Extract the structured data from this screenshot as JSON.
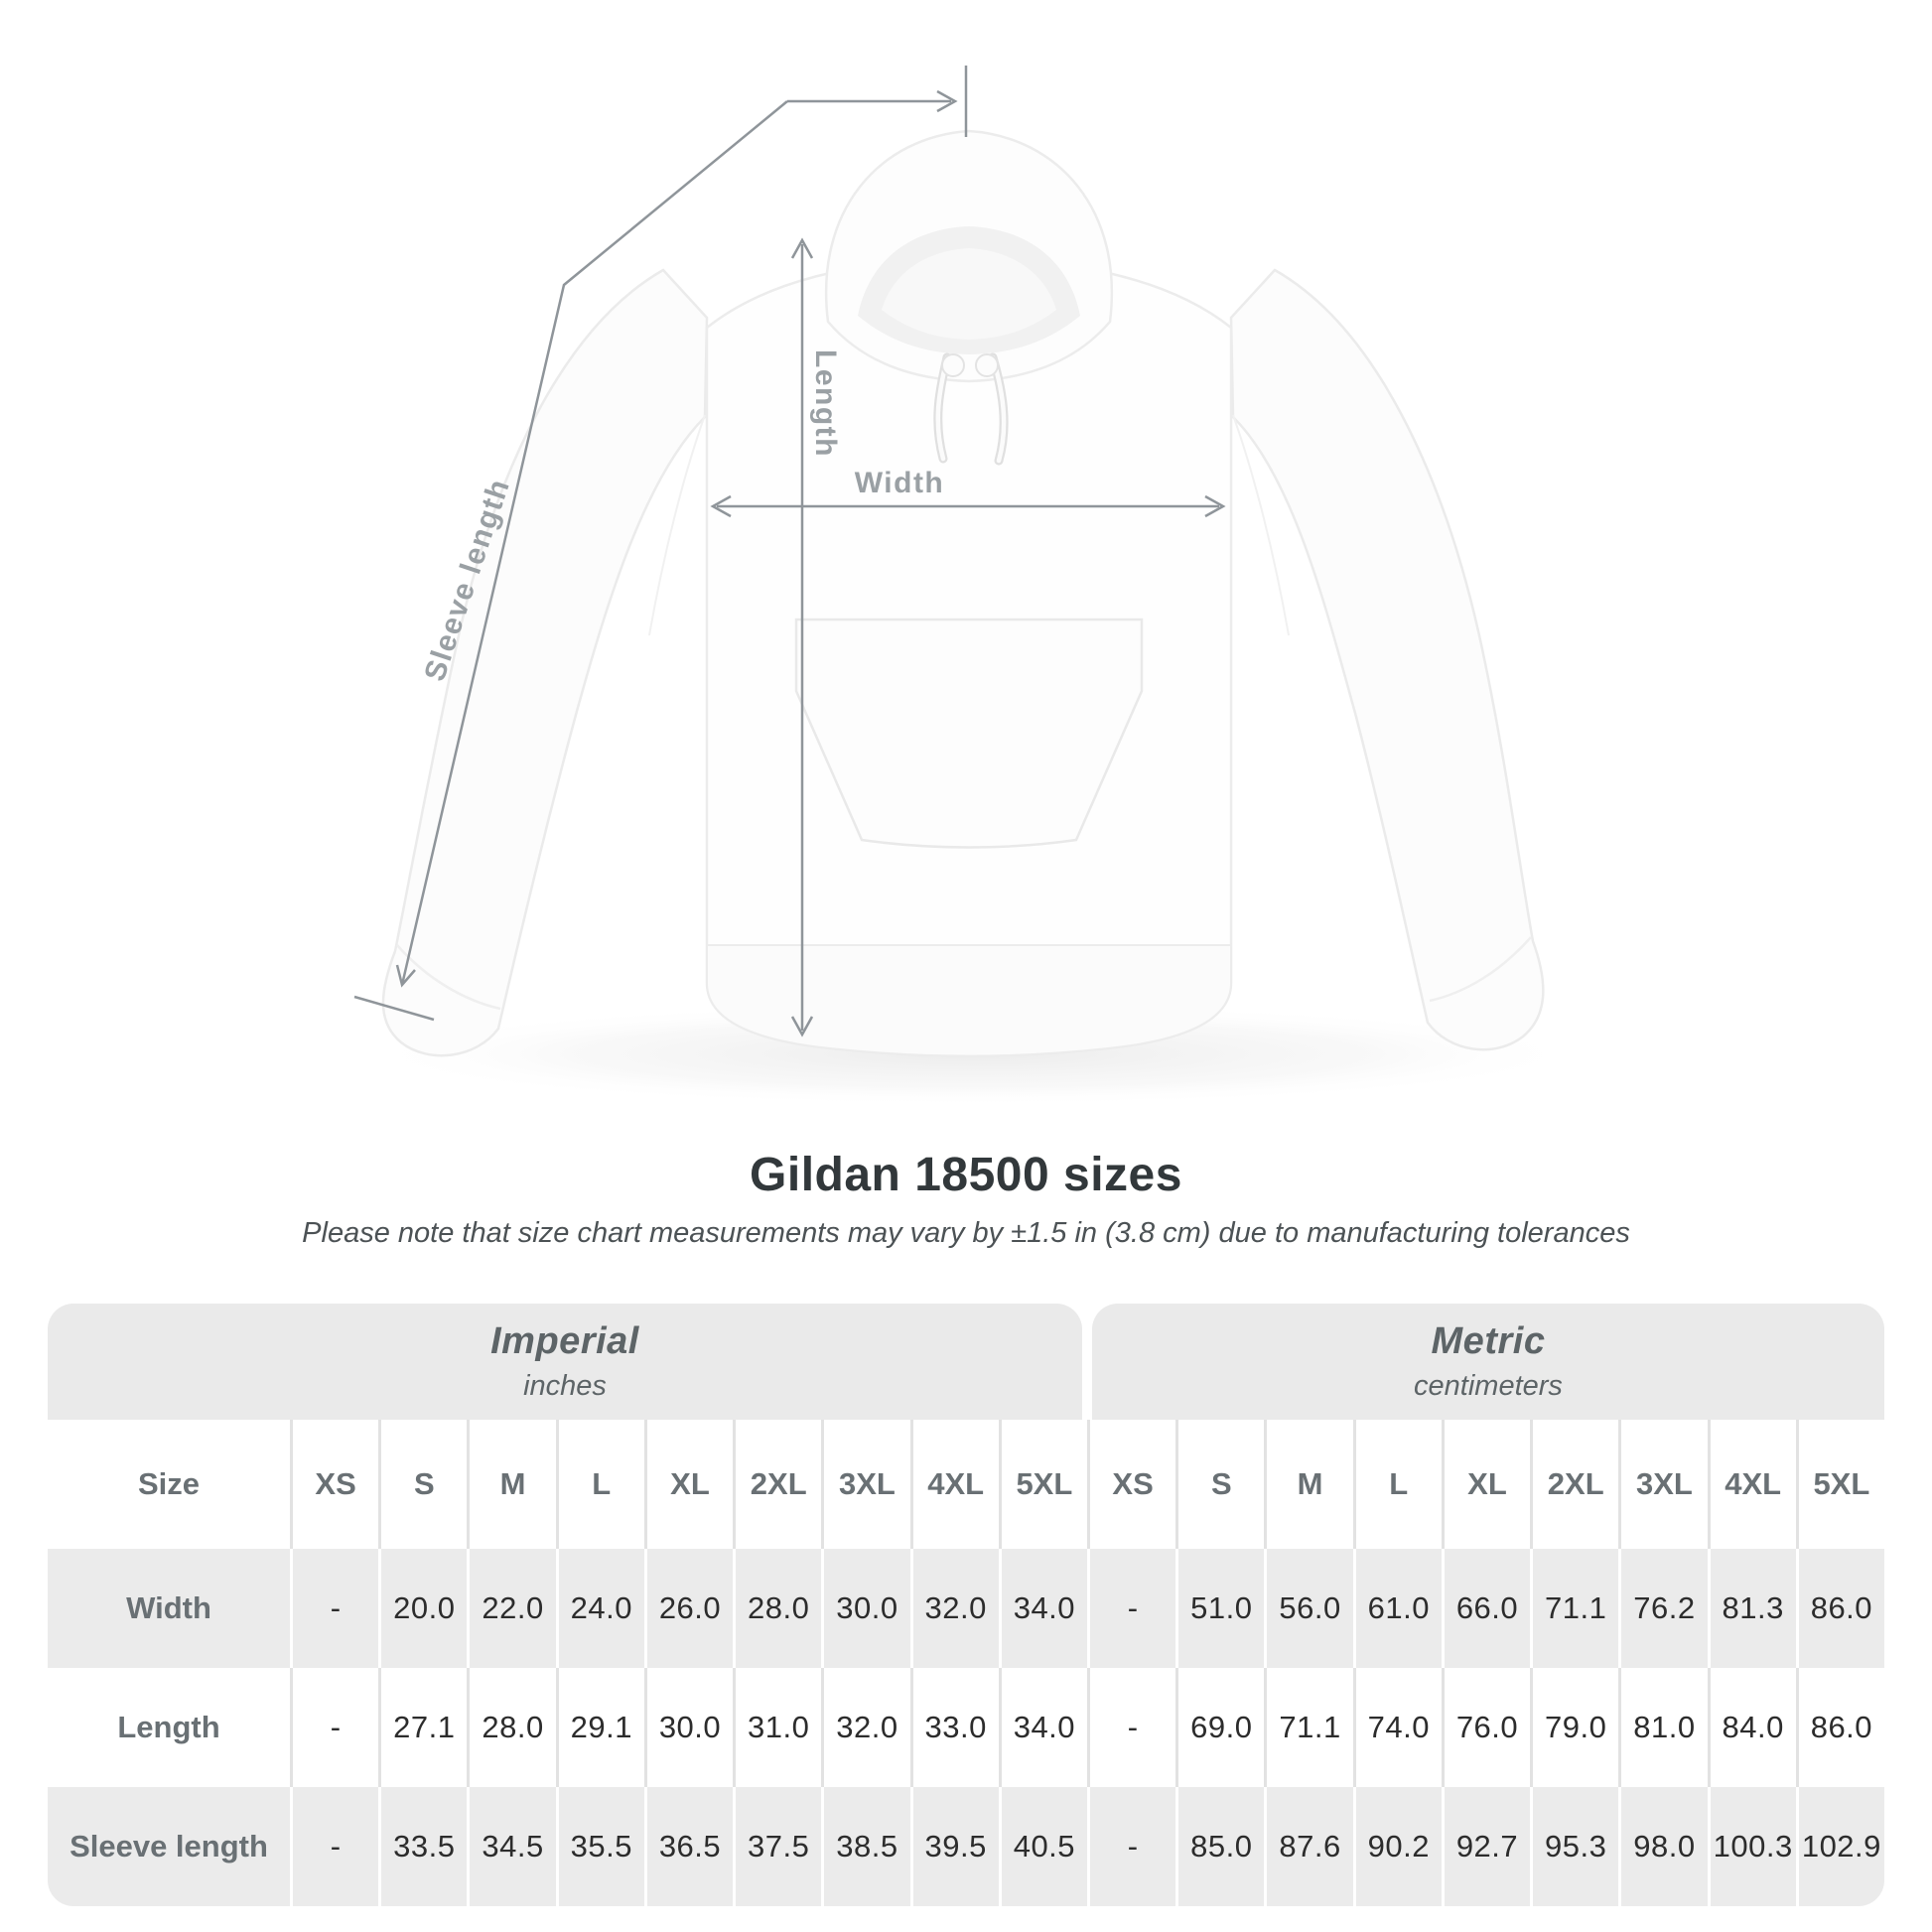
{
  "hero": {
    "measure_labels": {
      "length": "Length",
      "width": "Width",
      "sleeve_length": "Sleeve length"
    }
  },
  "title": "Gildan 18500 sizes",
  "subtitle": "Please note that size chart measurements may vary by ±1.5 in (3.8 cm) due to manufacturing tolerances",
  "colors": {
    "band_gray": "#eaeaea",
    "row_gray": "#ebebeb",
    "label_text": "#697074",
    "value_text": "#2c2c2c",
    "arrow_gray": "#8f959a",
    "hero_label_gray": "#9aa0a4"
  },
  "table": {
    "size_label": "Size",
    "groups": [
      {
        "name": "Imperial",
        "unit": "inches"
      },
      {
        "name": "Metric",
        "unit": "centimeters"
      }
    ],
    "sizes": [
      "XS",
      "S",
      "M",
      "L",
      "XL",
      "2XL",
      "3XL",
      "4XL",
      "5XL"
    ],
    "rows": [
      {
        "label": "Width",
        "imperial": [
          "-",
          "20.0",
          "22.0",
          "24.0",
          "26.0",
          "28.0",
          "30.0",
          "32.0",
          "34.0"
        ],
        "metric": [
          "-",
          "51.0",
          "56.0",
          "61.0",
          "66.0",
          "71.1",
          "76.2",
          "81.3",
          "86.0"
        ]
      },
      {
        "label": "Length",
        "imperial": [
          "-",
          "27.1",
          "28.0",
          "29.1",
          "30.0",
          "31.0",
          "32.0",
          "33.0",
          "34.0"
        ],
        "metric": [
          "-",
          "69.0",
          "71.1",
          "74.0",
          "76.0",
          "79.0",
          "81.0",
          "84.0",
          "86.0"
        ]
      },
      {
        "label": "Sleeve length",
        "imperial": [
          "-",
          "33.5",
          "34.5",
          "35.5",
          "36.5",
          "37.5",
          "38.5",
          "39.5",
          "40.5"
        ],
        "metric": [
          "-",
          "85.0",
          "87.6",
          "90.2",
          "92.7",
          "95.3",
          "98.0",
          "100.3",
          "102.9"
        ]
      }
    ]
  },
  "chart_data": {
    "type": "table",
    "title": "Gildan 18500 sizes",
    "note": "Measurements may vary by ±1.5 in (3.8 cm) due to manufacturing tolerances",
    "columns": [
      "Size",
      "XS",
      "S",
      "M",
      "L",
      "XL",
      "2XL",
      "3XL",
      "4XL",
      "5XL"
    ],
    "units": {
      "imperial": "inches",
      "metric": "centimeters"
    },
    "rows_imperial": [
      {
        "measurement": "Width",
        "values": [
          null,
          20.0,
          22.0,
          24.0,
          26.0,
          28.0,
          30.0,
          32.0,
          34.0
        ]
      },
      {
        "measurement": "Length",
        "values": [
          null,
          27.1,
          28.0,
          29.1,
          30.0,
          31.0,
          32.0,
          33.0,
          34.0
        ]
      },
      {
        "measurement": "Sleeve length",
        "values": [
          null,
          33.5,
          34.5,
          35.5,
          36.5,
          37.5,
          38.5,
          39.5,
          40.5
        ]
      }
    ],
    "rows_metric": [
      {
        "measurement": "Width",
        "values": [
          null,
          51.0,
          56.0,
          61.0,
          66.0,
          71.1,
          76.2,
          81.3,
          86.0
        ]
      },
      {
        "measurement": "Length",
        "values": [
          null,
          69.0,
          71.1,
          74.0,
          76.0,
          79.0,
          81.0,
          84.0,
          86.0
        ]
      },
      {
        "measurement": "Sleeve length",
        "values": [
          null,
          85.0,
          87.6,
          90.2,
          92.7,
          95.3,
          98.0,
          100.3,
          102.9
        ]
      }
    ]
  }
}
